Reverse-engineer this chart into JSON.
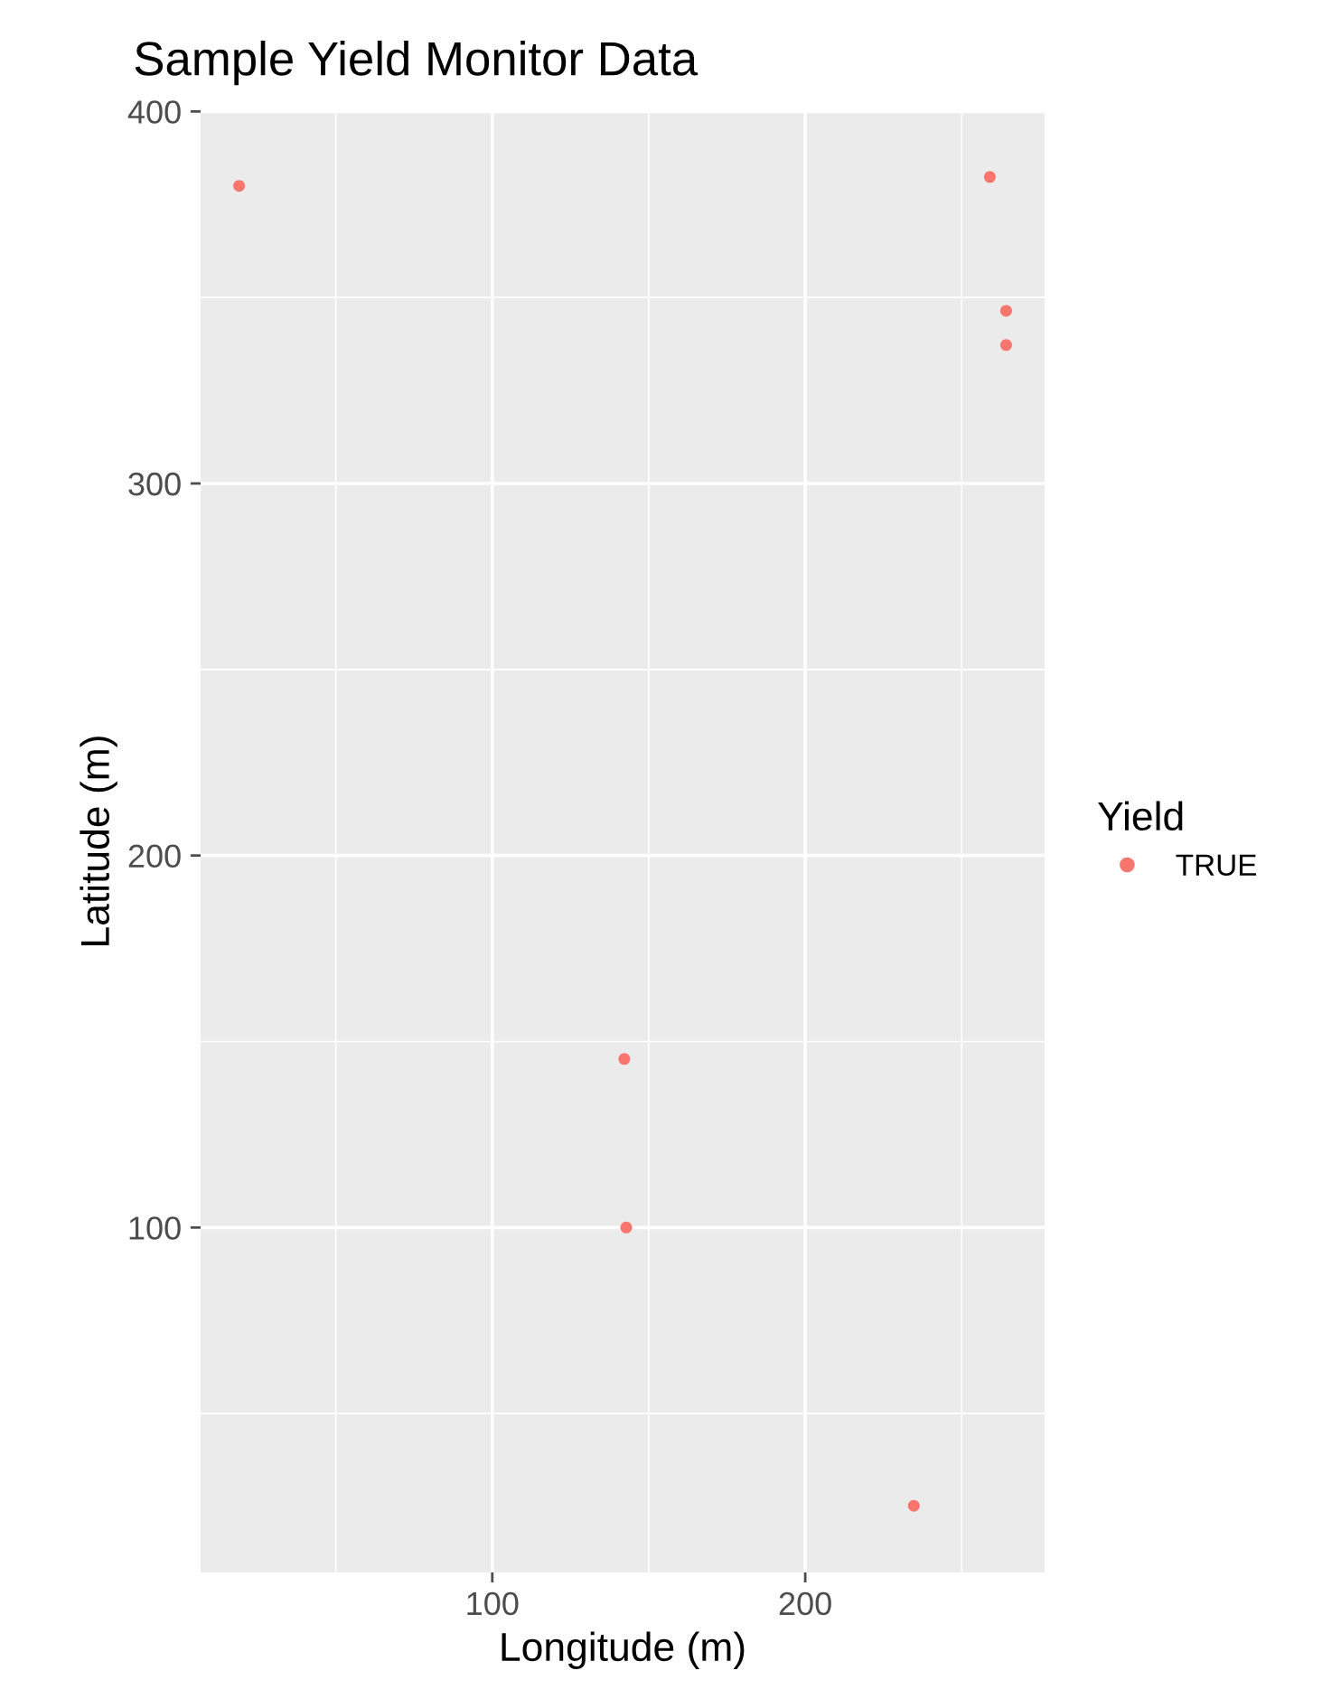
{
  "chart_data": {
    "type": "scatter",
    "title": "Sample Yield Monitor Data",
    "xlabel": "Longitude (m)",
    "ylabel": "Latitude (m)",
    "legend_title": "Yield",
    "series": [
      {
        "name": "TRUE",
        "color": "#f8766d",
        "x": [
          19.1,
          259,
          264.2,
          264.2,
          142.2,
          142.8,
          234.7
        ],
        "values": [
          380,
          382.4,
          346.4,
          337.2,
          145.3,
          100,
          25.2
        ]
      }
    ],
    "xlim": [
      6.8,
      276.5
    ],
    "ylim": [
      7.3,
      400.3
    ],
    "xticks": [
      100,
      200
    ],
    "yticks": [
      100,
      200,
      300,
      400
    ],
    "grid": true,
    "legend": "right",
    "marker": "circle"
  }
}
